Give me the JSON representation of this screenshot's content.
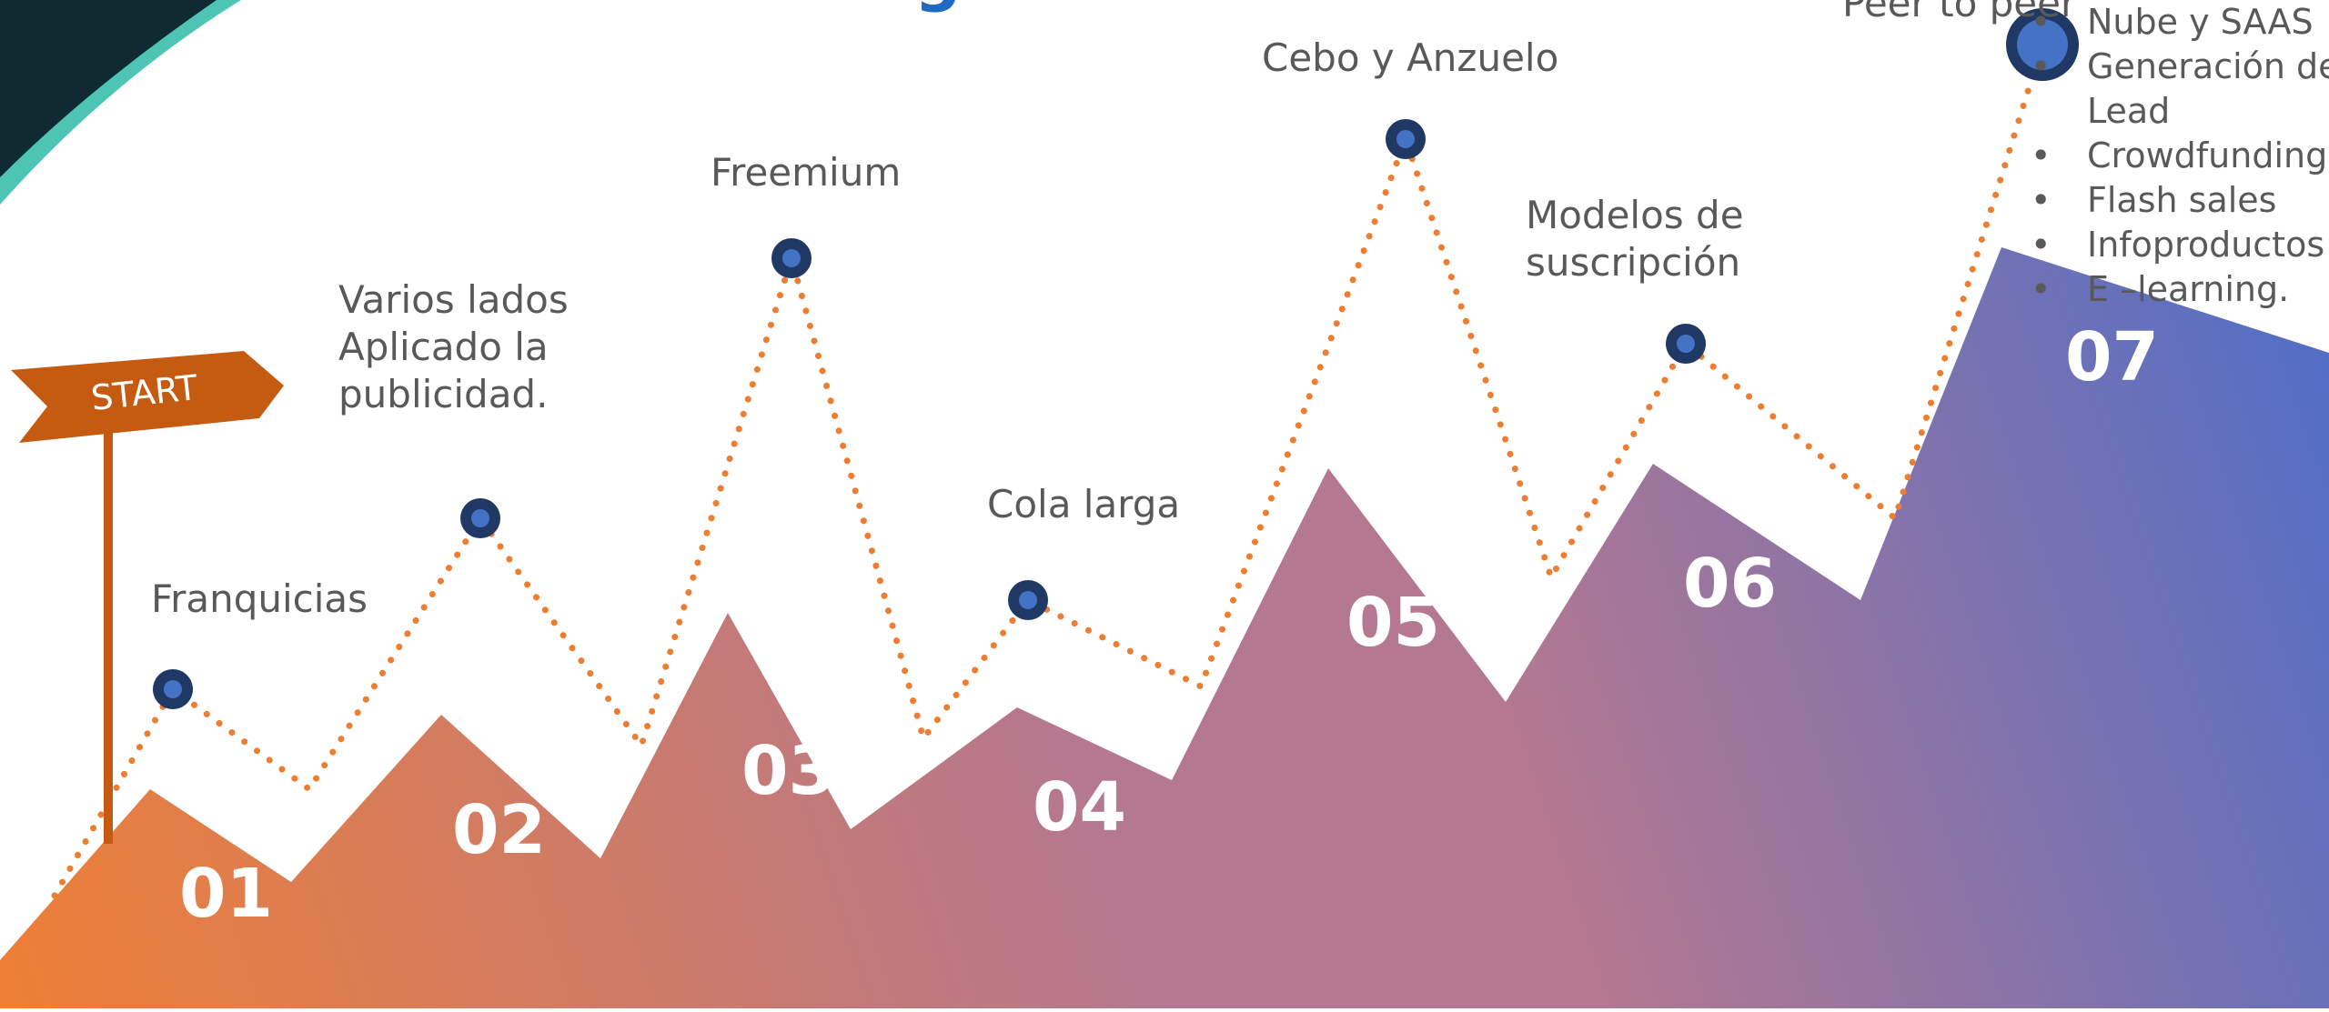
{
  "title_fragment": "g",
  "start_label": "START",
  "steps": [
    {
      "num": "01",
      "label": "Franquicias"
    },
    {
      "num": "02",
      "label": "Varios lados\nAplicado la\npublicidad."
    },
    {
      "num": "03",
      "label": "Freemium"
    },
    {
      "num": "04",
      "label": "Cola larga"
    },
    {
      "num": "05",
      "label": "Cebo y Anzuelo"
    },
    {
      "num": "06",
      "label": "Modelos de\nsuscripción"
    },
    {
      "num": "07",
      "label": "Peer to peer"
    }
  ],
  "step7_bullets": [
    "Nube y SAAS",
    "Generación de",
    "Lead",
    "Crowdfunding",
    "Flash sales",
    "Infoproductos",
    "E –learning."
  ],
  "colors": {
    "gradient_start": "#EE7F35",
    "gradient_mid": "#B47890",
    "gradient_end": "#4E6EC8",
    "dotted_line": "#ED7D31",
    "node_outer": "#1F3864",
    "node_inner": "#4472C4",
    "signpost": "#C55A11",
    "title": "#1F6BC4",
    "corner_dark": "#0F2A30",
    "corner_teal": "#4DC4B4"
  }
}
